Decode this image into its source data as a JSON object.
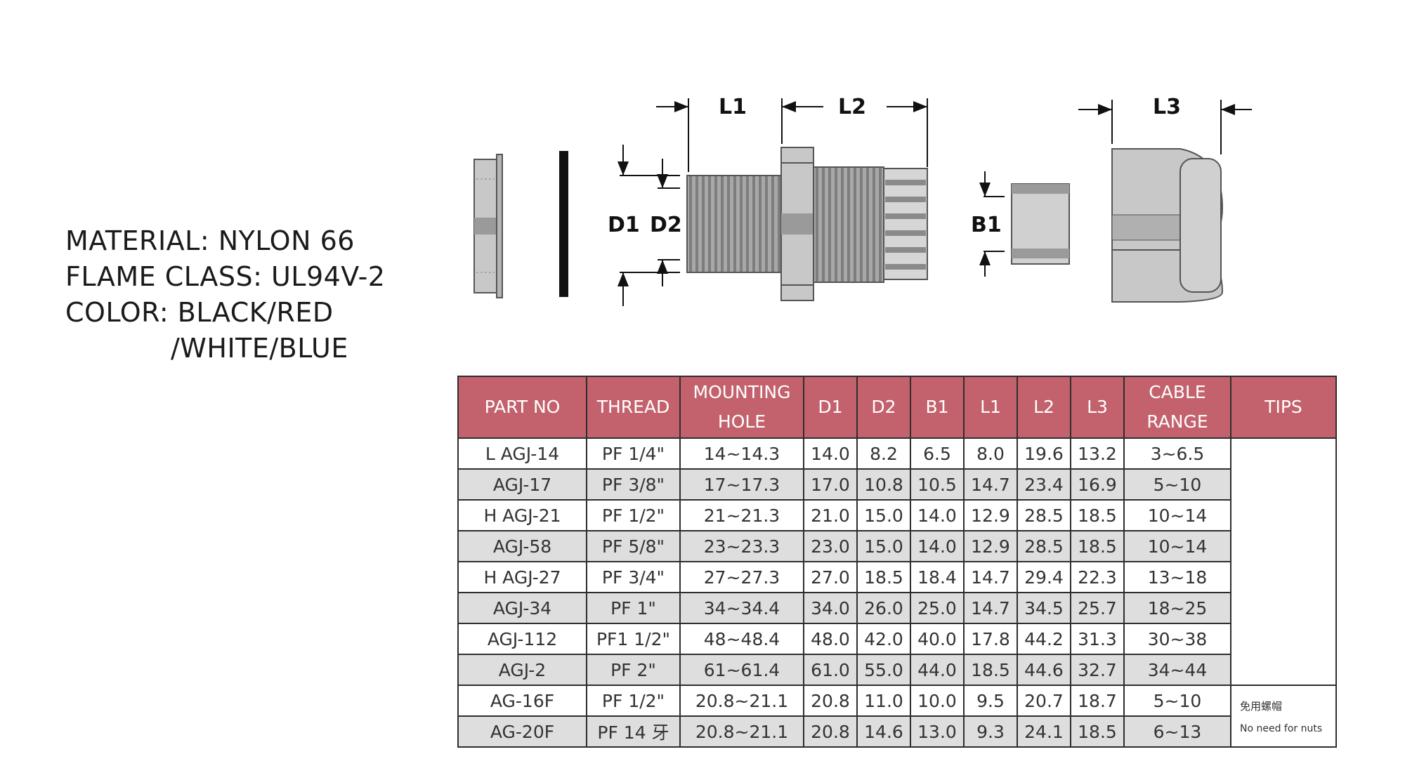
{
  "specs": {
    "material": "MATERIAL: NYLON 66",
    "flame_class": "FLAME CLASS: UL94V-2",
    "color_line1": "COLOR: BLACK/RED",
    "color_line2": "/WHITE/BLUE"
  },
  "drawing": {
    "labels": {
      "l1": "L1",
      "l2": "L2",
      "l3": "L3",
      "d1": "D1",
      "d2": "D2",
      "b1": "B1"
    },
    "colors": {
      "part_fill": "#c8c8c8",
      "part_dark": "#9a9a9a",
      "gasket": "#111111",
      "line": "#111111"
    }
  },
  "table": {
    "header_color": "#c3626d",
    "row_shade": "#dedede",
    "headers": {
      "part_no": "PART NO",
      "thread": "THREAD",
      "mounting_hole": "MOUNTING HOLE",
      "d1": "D1",
      "d2": "D2",
      "b1": "B1",
      "l1": "L1",
      "l2": "L2",
      "l3": "L3",
      "cable_range": "CABLE RANGE",
      "tips": "TIPS"
    },
    "rows": [
      {
        "part_no": "L AGJ-14",
        "thread": "PF 1/4\"",
        "hole": "14~14.3",
        "d1": "14.0",
        "d2": "8.2",
        "b1": "6.5",
        "l1": "8.0",
        "l2": "19.6",
        "l3": "13.2",
        "range": "3~6.5"
      },
      {
        "part_no": "AGJ-17",
        "thread": "PF 3/8\"",
        "hole": "17~17.3",
        "d1": "17.0",
        "d2": "10.8",
        "b1": "10.5",
        "l1": "14.7",
        "l2": "23.4",
        "l3": "16.9",
        "range": "5~10"
      },
      {
        "part_no": "H AGJ-21",
        "thread": "PF 1/2\"",
        "hole": "21~21.3",
        "d1": "21.0",
        "d2": "15.0",
        "b1": "14.0",
        "l1": "12.9",
        "l2": "28.5",
        "l3": "18.5",
        "range": "10~14"
      },
      {
        "part_no": "AGJ-58",
        "thread": "PF 5/8\"",
        "hole": "23~23.3",
        "d1": "23.0",
        "d2": "15.0",
        "b1": "14.0",
        "l1": "12.9",
        "l2": "28.5",
        "l3": "18.5",
        "range": "10~14"
      },
      {
        "part_no": "H AGJ-27",
        "thread": "PF 3/4\"",
        "hole": "27~27.3",
        "d1": "27.0",
        "d2": "18.5",
        "b1": "18.4",
        "l1": "14.7",
        "l2": "29.4",
        "l3": "22.3",
        "range": "13~18"
      },
      {
        "part_no": "AGJ-34",
        "thread": "PF 1\"",
        "hole": "34~34.4",
        "d1": "34.0",
        "d2": "26.0",
        "b1": "25.0",
        "l1": "14.7",
        "l2": "34.5",
        "l3": "25.7",
        "range": "18~25"
      },
      {
        "part_no": "AGJ-112",
        "thread": "PF1 1/2\"",
        "hole": "48~48.4",
        "d1": "48.0",
        "d2": "42.0",
        "b1": "40.0",
        "l1": "17.8",
        "l2": "44.2",
        "l3": "31.3",
        "range": "30~38"
      },
      {
        "part_no": "AGJ-2",
        "thread": "PF 2\"",
        "hole": "61~61.4",
        "d1": "61.0",
        "d2": "55.0",
        "b1": "44.0",
        "l1": "18.5",
        "l2": "44.6",
        "l3": "32.7",
        "range": "34~44"
      },
      {
        "part_no": "AG-16F",
        "thread": "PF 1/2\"",
        "hole": "20.8~21.1",
        "d1": "20.8",
        "d2": "11.0",
        "b1": "10.0",
        "l1": "9.5",
        "l2": "20.7",
        "l3": "18.7",
        "range": "5~10"
      },
      {
        "part_no": "AG-20F",
        "thread": "PF 14 牙",
        "hole": "20.8~21.1",
        "d1": "20.8",
        "d2": "14.6",
        "b1": "13.0",
        "l1": "9.3",
        "l2": "24.1",
        "l3": "18.5",
        "range": "6~13"
      }
    ],
    "tips_note": {
      "cn": "免用螺帽",
      "en": "No need for nuts"
    }
  }
}
